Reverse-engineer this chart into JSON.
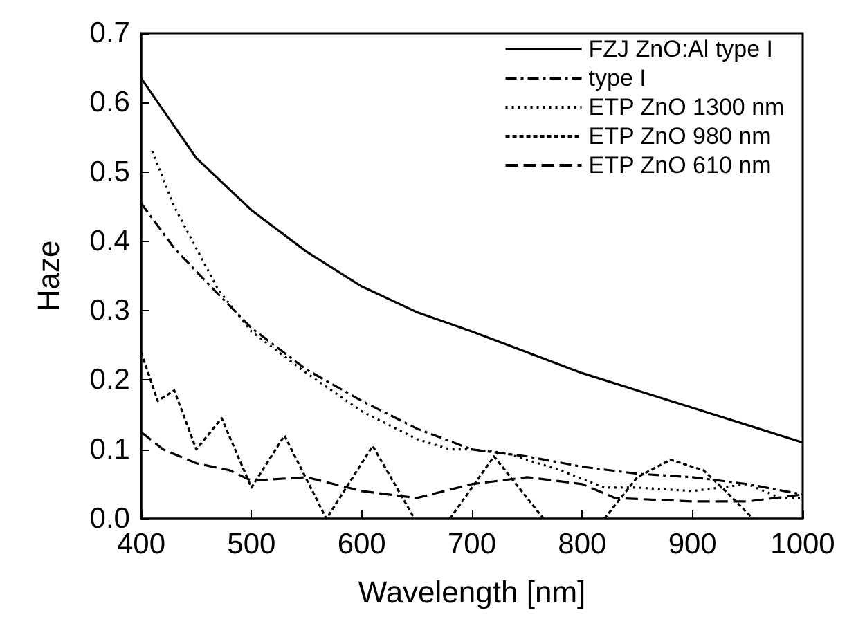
{
  "chart_data": {
    "type": "line",
    "xlabel": "Wavelength [nm]",
    "ylabel": "Haze",
    "xlim": [
      400,
      1000
    ],
    "xticks": [
      400,
      500,
      600,
      700,
      800,
      900,
      1000
    ],
    "ylim": [
      0,
      0.7
    ],
    "yticks": [
      {
        "value": 0,
        "label": "0.0"
      },
      0.1,
      0.2,
      0.3,
      0.4,
      0.5,
      0.6,
      0.7
    ],
    "legend": "top right",
    "marker": "none",
    "grid": false,
    "series": [
      {
        "name": "FZJ ZnO:Al type I",
        "color": "#000000",
        "line_style": "solid",
        "x": [
          400,
          450,
          500,
          550,
          600,
          650,
          700,
          750,
          800,
          850,
          900,
          950,
          1000
        ],
        "values": [
          0.635,
          0.52,
          0.445,
          0.385,
          0.335,
          0.298,
          0.27,
          0.24,
          0.21,
          0.185,
          0.16,
          0.135,
          0.11
        ]
      },
      {
        "name": "type I",
        "color": "#000000",
        "line_style": "dashdot",
        "x": [
          400,
          430,
          460,
          500,
          550,
          600,
          650,
          700,
          750,
          800,
          850,
          900,
          950,
          1000
        ],
        "values": [
          0.455,
          0.39,
          0.34,
          0.275,
          0.215,
          0.17,
          0.13,
          0.1,
          0.09,
          0.075,
          0.065,
          0.06,
          0.05,
          0.035
        ]
      },
      {
        "name": "ETP ZnO 1300 nm",
        "color": "#000000",
        "line_style": "dotted",
        "x": [
          410,
          430,
          450,
          470,
          500,
          550,
          600,
          650,
          680,
          700,
          730,
          780,
          820,
          850,
          900,
          950,
          980,
          1000
        ],
        "values": [
          0.53,
          0.45,
          0.39,
          0.33,
          0.27,
          0.21,
          0.155,
          0.115,
          0.1,
          0.1,
          0.095,
          0.07,
          0.045,
          0.045,
          0.04,
          0.05,
          0.03,
          0.03
        ]
      },
      {
        "name": "ETP ZnO 980 nm",
        "color": "#000000",
        "line_style": "short dashed",
        "x": [
          400,
          415,
          430,
          450,
          473,
          500,
          530,
          568,
          610,
          648,
          664,
          680,
          720,
          765,
          792,
          820,
          850,
          880,
          910,
          930,
          955
        ],
        "values": [
          0.24,
          0.17,
          0.185,
          0.1,
          0.145,
          0.045,
          0.12,
          0.0,
          0.105,
          0.0,
          null,
          0.0,
          0.09,
          0.0,
          null,
          0.0,
          0.06,
          0.085,
          0.07,
          0.04,
          0.0
        ]
      },
      {
        "name": "ETP ZnO 610 nm",
        "color": "#000000",
        "line_style": "dashed",
        "x": [
          400,
          420,
          450,
          480,
          500,
          550,
          600,
          650,
          700,
          750,
          800,
          830,
          900,
          950,
          1000
        ],
        "values": [
          0.125,
          0.1,
          0.08,
          0.07,
          0.055,
          0.06,
          0.04,
          0.03,
          0.05,
          0.06,
          0.05,
          0.03,
          0.025,
          0.025,
          0.035
        ]
      }
    ]
  }
}
